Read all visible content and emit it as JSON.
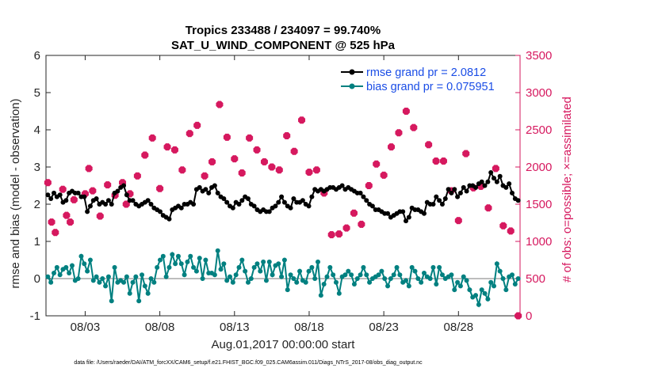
{
  "colors": {
    "rmse": "#000000",
    "bias": "#008080",
    "obs": "#d6195f",
    "zero_line": "#bdbdbd",
    "legend_text": "#1a4de6"
  },
  "chart_data": {
    "type": "line",
    "title": "Tropics 233488 / 234097 = 99.740%",
    "subtitle": "SAT_U_WIND_COMPONENT @ 525 hPa",
    "xlabel": "Aug.01,2017 00:00:00 start",
    "ylabel": "rmse and bias (model - observation)",
    "y2label": "# of obs: o=possible; ×=assimilated",
    "footnote": "data file: /Users/raeder/DAI/ATM_forcXX/CAM6_setup/f.e21.FHIST_BGC.f09_025.CAM6assim.011/Diags_NTrS_2017-08/obs_diag_output.nc",
    "xlim": [
      0.375,
      32.125
    ],
    "ylim": [
      -1,
      6
    ],
    "y2lim": [
      0,
      3500
    ],
    "x_ticks": [
      3,
      8,
      13,
      18,
      23,
      28
    ],
    "x_tick_labels": [
      "08/03",
      "08/08",
      "08/13",
      "08/18",
      "08/23",
      "08/28"
    ],
    "y_ticks": [
      -1,
      0,
      1,
      2,
      3,
      4,
      5,
      6
    ],
    "y2_ticks": [
      0,
      500,
      1000,
      1500,
      2000,
      2500,
      3000,
      3500
    ],
    "legend_position": "top-right",
    "series": [
      {
        "name": "rmse grand pr = 2.0812",
        "axis": "left",
        "style": "line-markers",
        "values": [
          2.25,
          2.15,
          2.3,
          2.2,
          2.25,
          2.05,
          2.1,
          2.3,
          2.35,
          2.3,
          2.3,
          2.2,
          2.2,
          1.8,
          1.95,
          2.1,
          2.15,
          2.0,
          2.05,
          2.0,
          2.1,
          2.0,
          2.3,
          2.35,
          2.45,
          2.5,
          2.25,
          2.1,
          2.1,
          2.0,
          1.95,
          2.0,
          2.05,
          2.1,
          2.0,
          1.9,
          1.85,
          1.8,
          1.7,
          1.65,
          1.6,
          1.85,
          1.9,
          1.95,
          1.9,
          2.0,
          2.0,
          2.05,
          2.0,
          2.4,
          2.45,
          2.35,
          2.4,
          2.3,
          2.45,
          2.5,
          2.3,
          2.2,
          2.15,
          2.05,
          1.95,
          1.9,
          2.05,
          2.0,
          2.1,
          2.2,
          2.15,
          2.0,
          1.95,
          1.85,
          1.8,
          1.85,
          1.8,
          1.8,
          1.9,
          1.95,
          2.05,
          2.2,
          2.05,
          1.95,
          1.9,
          2.15,
          2.05,
          2.05,
          2.1,
          2.0,
          1.95,
          2.2,
          2.4,
          2.35,
          2.4,
          2.35,
          2.4,
          2.45,
          2.45,
          2.4,
          2.45,
          2.5,
          2.4,
          2.45,
          2.4,
          2.35,
          2.3,
          2.3,
          2.2,
          2.1,
          2.0,
          1.95,
          1.85,
          1.85,
          1.8,
          1.75,
          1.75,
          1.65,
          1.7,
          1.75,
          1.8,
          1.8,
          1.55,
          1.65,
          1.9,
          1.85,
          1.85,
          1.8,
          1.75,
          2.05,
          2.0,
          2.0,
          2.2,
          2.1,
          2.0,
          2.15,
          2.4,
          2.3,
          2.4,
          2.2,
          2.3,
          2.45,
          2.35,
          2.5,
          2.5,
          2.45,
          2.55,
          2.6,
          2.5,
          2.6,
          2.85,
          2.7,
          2.6,
          2.75,
          2.5,
          2.45,
          2.55,
          2.3,
          2.15,
          2.1
        ]
      },
      {
        "name": "bias grand pr = 0.075951",
        "axis": "left",
        "style": "line-markers",
        "values": [
          0.05,
          -0.1,
          0.15,
          0.3,
          0.1,
          0.25,
          0.3,
          0.15,
          0.35,
          -0.05,
          0.0,
          0.6,
          0.4,
          0.2,
          0.5,
          -0.05,
          0.05,
          -0.1,
          0.0,
          -0.2,
          0.05,
          -0.6,
          0.3,
          -0.1,
          -0.05,
          -0.1,
          0.05,
          -0.4,
          -0.1,
          0.05,
          -0.6,
          0.1,
          -0.2,
          -0.4,
          0.0,
          -0.1,
          0.3,
          0.5,
          0.6,
          0.05,
          0.3,
          0.65,
          0.4,
          0.6,
          0.4,
          0.1,
          0.45,
          0.6,
          0.3,
          0.2,
          0.55,
          0.0,
          0.5,
          0.15,
          0.15,
          0.1,
          0.75,
          0.25,
          0.4,
          -0.05,
          0.05,
          -0.1,
          0.1,
          0.3,
          0.5,
          0.2,
          -0.1,
          0.0,
          0.3,
          0.4,
          0.2,
          0.45,
          -0.05,
          0.45,
          0.1,
          0.35,
          0.4,
          0.05,
          0.5,
          -0.3,
          0.1,
          0.0,
          -0.1,
          0.2,
          -0.05,
          -0.1,
          0.2,
          0.3,
          0.0,
          0.45,
          -0.45,
          -0.15,
          0.05,
          0.3,
          0.1,
          -0.1,
          -0.4,
          0.05,
          0.1,
          0.2,
          0.1,
          -0.15,
          0.0,
          0.1,
          0.3,
          0.1,
          -0.1,
          0.0,
          0.05,
          0.1,
          0.2,
          0.0,
          -0.2,
          0.0,
          0.1,
          0.3,
          0.1,
          -0.1,
          -0.05,
          -0.2,
          0.3,
          0.2,
          0.0,
          -0.1,
          0.15,
          0.05,
          0.0,
          0.3,
          -0.15,
          0.3,
          0.1,
          0.0,
          0.05,
          0.1,
          -0.3,
          -0.1,
          -0.2,
          0.05,
          -0.05,
          -0.3,
          -0.5,
          -0.45,
          -0.7,
          -0.3,
          -0.4,
          -0.55,
          -0.1,
          -0.2,
          0.4,
          0.2,
          0.0,
          -0.3,
          0.05,
          0.1,
          -0.15,
          0.0
        ]
      },
      {
        "name": "obs assimilated",
        "axis": "right",
        "style": "markers-only",
        "marker": "×",
        "points": [
          [
            0.5,
            1790
          ],
          [
            0.75,
            1260
          ],
          [
            1,
            1120
          ],
          [
            1.5,
            1700
          ],
          [
            1.75,
            1350
          ],
          [
            2,
            1260
          ],
          [
            2.25,
            1560
          ],
          [
            3,
            1640
          ],
          [
            3.25,
            1980
          ],
          [
            3.5,
            1680
          ],
          [
            4,
            1340
          ],
          [
            4.5,
            1760
          ],
          [
            5,
            1620
          ],
          [
            5.5,
            1790
          ],
          [
            5.75,
            1500
          ],
          [
            6,
            1640
          ],
          [
            6.5,
            1880
          ],
          [
            7,
            2160
          ],
          [
            7.5,
            2390
          ],
          [
            8,
            1710
          ],
          [
            8.5,
            2270
          ],
          [
            9,
            2230
          ],
          [
            9.5,
            1960
          ],
          [
            10,
            2450
          ],
          [
            10.5,
            2560
          ],
          [
            11,
            1880
          ],
          [
            11.5,
            2070
          ],
          [
            12,
            2840
          ],
          [
            12.5,
            2400
          ],
          [
            13,
            2110
          ],
          [
            13.5,
            1920
          ],
          [
            14,
            2390
          ],
          [
            14.5,
            2230
          ],
          [
            15,
            2070
          ],
          [
            15.5,
            2000
          ],
          [
            16,
            1960
          ],
          [
            16.5,
            2420
          ],
          [
            17,
            2210
          ],
          [
            17.5,
            2630
          ],
          [
            18,
            1930
          ],
          [
            18.5,
            1960
          ],
          [
            19,
            1650
          ],
          [
            19.5,
            1090
          ],
          [
            20,
            1100
          ],
          [
            20.5,
            1180
          ],
          [
            21,
            1380
          ],
          [
            21.5,
            1230
          ],
          [
            22,
            1750
          ],
          [
            22.5,
            2040
          ],
          [
            23,
            1890
          ],
          [
            23.5,
            2270
          ],
          [
            24,
            2460
          ],
          [
            24.5,
            2750
          ],
          [
            25,
            2530
          ],
          [
            25.5,
            3200
          ],
          [
            26,
            2300
          ],
          [
            26.5,
            2080
          ],
          [
            27,
            2080
          ],
          [
            27.5,
            1680
          ],
          [
            28,
            1280
          ],
          [
            28.5,
            2180
          ],
          [
            29,
            1720
          ],
          [
            29.5,
            1740
          ],
          [
            30,
            1450
          ],
          [
            30.5,
            1980
          ],
          [
            31,
            1210
          ],
          [
            31.5,
            1140
          ],
          [
            32,
            0
          ]
        ]
      }
    ]
  }
}
